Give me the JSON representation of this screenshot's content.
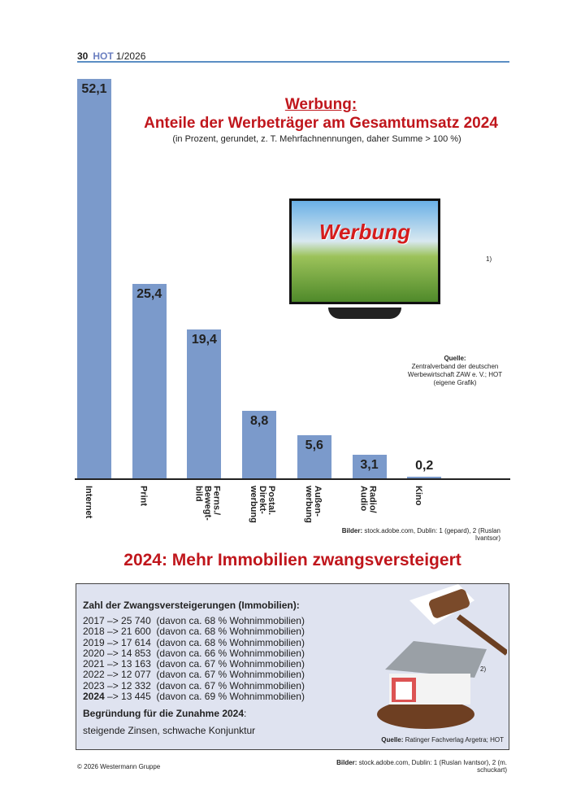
{
  "header": {
    "page": "30",
    "brand": "HOT",
    "issue": "1/2026"
  },
  "chart_data": {
    "type": "bar",
    "title": "Werbung:",
    "subtitle_main": "Anteile der Werbeträger am Gesamtumsatz 2024",
    "note": "(in Prozent, gerundet, z. T. Mehrfachnennungen, daher Summe > 100 %)",
    "categories": [
      "Internet",
      "Print",
      "Ferns./\nBewegt-\nbild",
      "Postal.\nDirekt-\nwerbung",
      "Außen-\nwerbung",
      "Radio/\nAudio",
      "Kino"
    ],
    "values": [
      52.1,
      25.4,
      19.4,
      8.8,
      5.6,
      3.1,
      0.2
    ],
    "value_labels": [
      "52,1",
      "25,4",
      "19,4",
      "8,8",
      "5,6",
      "3,1",
      "0,2"
    ],
    "ylim": [
      0,
      52.1
    ],
    "grid": false,
    "bar_color": "#7b9acb"
  },
  "tv": {
    "word": "Werbung",
    "footnote": "1)"
  },
  "source1": {
    "label": "Quelle:",
    "text": "Zentralverband der deutschen Werbewirtschaft ZAW e. V.; HOT (eigene Grafik)"
  },
  "bilder1": {
    "label": "Bilder:",
    "text": " stock.adobe.com, Dublin: 1 (gepard), 2 (Ruslan Ivantsor)"
  },
  "section2": {
    "title": "2024: Mehr Immobilien zwangsversteigert",
    "box_title": "Zahl der Zwangsversteigerungen (Immobilien):",
    "rows": [
      {
        "year": "2017",
        "text": " –> 25 740  (davon ca. 68 % Wohnimmobilien)"
      },
      {
        "year": "2018",
        "text": " –> 21 600  (davon ca. 68 % Wohnimmobilien)"
      },
      {
        "year": "2019",
        "text": " –> 17 614  (davon ca. 68 % Wohnimmobilien)"
      },
      {
        "year": "2020",
        "text": " –> 14 853  (davon ca. 66 % Wohnimmobilien)"
      },
      {
        "year": "2021",
        "text": " –> 13 163  (davon ca. 67 % Wohnimmobilien)"
      },
      {
        "year": "2022",
        "text": " –> 12 077  (davon ca. 67 % Wohnimmobilien)"
      },
      {
        "year": "2023",
        "text": " –> 12 332  (davon ca. 67 % Wohnimmobilien)"
      },
      {
        "year": "2024",
        "text": " –> 13 445  (davon ca. 69 % Wohnimmobilien)",
        "bold": true
      }
    ],
    "reason_title": "Begründung für die Zunahme 2024",
    "reason_colon": ":",
    "reason": "steigende Zinsen, schwache Konjunktur",
    "footnote": "2)",
    "source_label": "Quelle:",
    "source": " Ratinger Fachverlag Argetra; HOT"
  },
  "footer": {
    "copyright": "© 2026 Westermann Gruppe",
    "bilder_label": "Bilder:",
    "bilder": " stock.adobe.com, Dublin: 1 (Ruslan Ivantsor), 2 (m. schuckart)"
  }
}
